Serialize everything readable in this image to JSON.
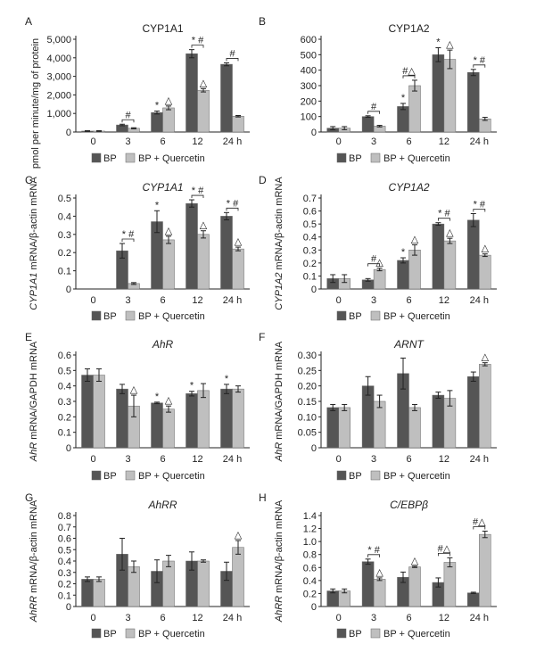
{
  "colors": {
    "bp": "#555555",
    "bpq": "#bfbfbf",
    "axis": "#222222",
    "error": "#222222"
  },
  "legend": {
    "bp": "BP",
    "bpq": "BP + Quercetin"
  },
  "x_categories": [
    "0",
    "3",
    "6",
    "12",
    "24 h"
  ],
  "chart_data": [
    {
      "panel": "A",
      "type": "bar",
      "title": "CYP1A1",
      "title_italic": false,
      "ylabel": "",
      "shared_ylabel": "pmol per minute/mg of protein",
      "ylim": [
        0,
        5000
      ],
      "yticks": [
        0,
        1000,
        2000,
        3000,
        4000,
        5000
      ],
      "ytick_labels": [
        "0",
        "1,000",
        "2,000",
        "3,000",
        "4,000",
        "5,000"
      ],
      "categories": [
        "0",
        "3",
        "6",
        "12",
        "24 h"
      ],
      "series": [
        {
          "name": "BP",
          "values": [
            50,
            380,
            1050,
            4220,
            3650
          ],
          "errors": [
            20,
            40,
            80,
            220,
            80
          ]
        },
        {
          "name": "BP + Quercetin",
          "values": [
            50,
            200,
            1300,
            2250,
            850
          ],
          "errors": [
            20,
            30,
            100,
            90,
            40
          ]
        }
      ],
      "annotations": [
        {
          "cat": 1,
          "series": "pair",
          "text": "#"
        },
        {
          "cat": 2,
          "series": "BP",
          "text": "*"
        },
        {
          "cat": 2,
          "series": "BP + Quercetin",
          "text": "△"
        },
        {
          "cat": 3,
          "series": "pair",
          "text": "* #"
        },
        {
          "cat": 3,
          "series": "BP + Quercetin",
          "text": "△"
        },
        {
          "cat": 4,
          "series": "pair",
          "text": "#"
        }
      ]
    },
    {
      "panel": "B",
      "type": "bar",
      "title": "CYP1A2",
      "title_italic": false,
      "ylabel": "",
      "shared_ylabel": "",
      "ylim": [
        0,
        600
      ],
      "yticks": [
        0,
        100,
        200,
        300,
        400,
        500,
        600
      ],
      "ytick_labels": [
        "0",
        "100",
        "200",
        "300",
        "400",
        "500",
        "600"
      ],
      "categories": [
        "0",
        "3",
        "6",
        "12",
        "24 h"
      ],
      "series": [
        {
          "name": "BP",
          "values": [
            25,
            100,
            165,
            500,
            385
          ],
          "errors": [
            10,
            5,
            20,
            45,
            20
          ]
        },
        {
          "name": "BP + Quercetin",
          "values": [
            25,
            38,
            300,
            470,
            85
          ],
          "errors": [
            10,
            5,
            35,
            60,
            10
          ]
        }
      ],
      "annotations": [
        {
          "cat": 1,
          "series": "pair",
          "text": "#"
        },
        {
          "cat": 2,
          "series": "BP",
          "text": "*"
        },
        {
          "cat": 2,
          "series": "pair",
          "text": "#△"
        },
        {
          "cat": 3,
          "series": "BP",
          "text": "*"
        },
        {
          "cat": 3,
          "series": "BP + Quercetin",
          "text": "△"
        },
        {
          "cat": 4,
          "series": "pair",
          "text": "* #"
        }
      ]
    },
    {
      "panel": "C",
      "type": "bar",
      "title": "CYP1A1",
      "title_italic": true,
      "ylabel": "mRNA/β-actin mRNA",
      "ylabel_italic": "CYP1A1",
      "ylim": [
        0,
        0.5
      ],
      "yticks": [
        0,
        0.1,
        0.2,
        0.3,
        0.4,
        0.5
      ],
      "ytick_labels": [
        "0",
        "0.1",
        "0.2",
        "0.3",
        "0.4",
        "0.5"
      ],
      "categories": [
        "0",
        "3",
        "6",
        "12",
        "24 h"
      ],
      "series": [
        {
          "name": "BP",
          "values": [
            0,
            0.21,
            0.37,
            0.47,
            0.4
          ],
          "errors": [
            0,
            0.04,
            0.06,
            0.02,
            0.02
          ]
        },
        {
          "name": "BP + Quercetin",
          "values": [
            0,
            0.03,
            0.27,
            0.3,
            0.22
          ],
          "errors": [
            0,
            0.005,
            0.02,
            0.02,
            0.01
          ]
        }
      ],
      "annotations": [
        {
          "cat": 1,
          "series": "pair",
          "text": "* #"
        },
        {
          "cat": 2,
          "series": "BP",
          "text": "*"
        },
        {
          "cat": 2,
          "series": "BP + Quercetin",
          "text": "△"
        },
        {
          "cat": 3,
          "series": "pair",
          "text": "* #"
        },
        {
          "cat": 3,
          "series": "BP + Quercetin",
          "text": "△"
        },
        {
          "cat": 4,
          "series": "pair",
          "text": "* #"
        },
        {
          "cat": 4,
          "series": "BP + Quercetin",
          "text": "△"
        }
      ]
    },
    {
      "panel": "D",
      "type": "bar",
      "title": "CYP1A2",
      "title_italic": true,
      "ylabel": "mRNA/β-actin mRNA",
      "ylabel_italic": "CYP1A2",
      "ylim": [
        0,
        0.7
      ],
      "yticks": [
        0,
        0.1,
        0.2,
        0.3,
        0.4,
        0.5,
        0.6,
        0.7
      ],
      "ytick_labels": [
        "0",
        "0.1",
        "0.2",
        "0.3",
        "0.4",
        "0.5",
        "0.6",
        "0.7"
      ],
      "categories": [
        "0",
        "3",
        "6",
        "12",
        "24 h"
      ],
      "series": [
        {
          "name": "BP",
          "values": [
            0.08,
            0.07,
            0.22,
            0.5,
            0.53
          ],
          "errors": [
            0.03,
            0.01,
            0.02,
            0.01,
            0.05
          ]
        },
        {
          "name": "BP + Quercetin",
          "values": [
            0.08,
            0.15,
            0.3,
            0.37,
            0.26
          ],
          "errors": [
            0.03,
            0.01,
            0.04,
            0.02,
            0.01
          ]
        }
      ],
      "annotations": [
        {
          "cat": 1,
          "series": "pair",
          "text": "#"
        },
        {
          "cat": 1,
          "series": "BP + Quercetin",
          "text": "△"
        },
        {
          "cat": 2,
          "series": "BP",
          "text": "*"
        },
        {
          "cat": 2,
          "series": "BP + Quercetin",
          "text": "△"
        },
        {
          "cat": 3,
          "series": "pair",
          "text": "* #"
        },
        {
          "cat": 3,
          "series": "BP + Quercetin",
          "text": "△"
        },
        {
          "cat": 4,
          "series": "pair",
          "text": "* #"
        },
        {
          "cat": 4,
          "series": "BP + Quercetin",
          "text": "△"
        }
      ]
    },
    {
      "panel": "E",
      "type": "bar",
      "title": "AhR",
      "title_italic": true,
      "ylabel": "mRNA/GAPDH mRNA",
      "ylabel_italic": "AhR",
      "ylim": [
        0,
        0.6
      ],
      "yticks": [
        0,
        0.1,
        0.2,
        0.3,
        0.4,
        0.5,
        0.6
      ],
      "ytick_labels": [
        "0",
        "0.1",
        "0.2",
        "0.3",
        "0.4",
        "0.5",
        "0.6"
      ],
      "categories": [
        "0",
        "3",
        "6",
        "12",
        "24 h"
      ],
      "series": [
        {
          "name": "BP",
          "values": [
            0.47,
            0.38,
            0.29,
            0.35,
            0.38
          ],
          "errors": [
            0.04,
            0.03,
            0.005,
            0.015,
            0.03
          ]
        },
        {
          "name": "BP + Quercetin",
          "values": [
            0.47,
            0.27,
            0.25,
            0.37,
            0.38
          ],
          "errors": [
            0.04,
            0.07,
            0.02,
            0.045,
            0.02
          ]
        }
      ],
      "annotations": [
        {
          "cat": 1,
          "series": "BP + Quercetin",
          "text": "△"
        },
        {
          "cat": 2,
          "series": "BP",
          "text": "*"
        },
        {
          "cat": 2,
          "series": "BP + Quercetin",
          "text": "△"
        },
        {
          "cat": 3,
          "series": "BP",
          "text": "*"
        },
        {
          "cat": 4,
          "series": "BP",
          "text": "*"
        }
      ]
    },
    {
      "panel": "F",
      "type": "bar",
      "title": "ARNT",
      "title_italic": true,
      "ylabel": "mRNA/GAPDH mRNA",
      "ylabel_italic": "AhR",
      "ylim": [
        0,
        0.3
      ],
      "yticks": [
        0,
        0.05,
        0.1,
        0.15,
        0.2,
        0.25,
        0.3
      ],
      "ytick_labels": [
        "0",
        "0.05",
        "0.10",
        "0.15",
        "0.20",
        "0.25",
        "0.30"
      ],
      "categories": [
        "0",
        "3",
        "6",
        "12",
        "24 h"
      ],
      "series": [
        {
          "name": "BP",
          "values": [
            0.13,
            0.2,
            0.24,
            0.17,
            0.23
          ],
          "errors": [
            0.01,
            0.03,
            0.05,
            0.01,
            0.015
          ]
        },
        {
          "name": "BP + Quercetin",
          "values": [
            0.13,
            0.15,
            0.13,
            0.16,
            0.27
          ],
          "errors": [
            0.01,
            0.02,
            0.01,
            0.025,
            0.005
          ]
        }
      ],
      "annotations": [
        {
          "cat": 4,
          "series": "BP + Quercetin",
          "text": "△"
        }
      ]
    },
    {
      "panel": "G",
      "type": "bar",
      "title": "AhRR",
      "title_italic": true,
      "ylabel": "mRNA/β-actin mRNA",
      "ylabel_italic": "AhRR",
      "ylim": [
        0,
        0.8
      ],
      "yticks": [
        0,
        0.1,
        0.2,
        0.3,
        0.4,
        0.5,
        0.6,
        0.7,
        0.8
      ],
      "ytick_labels": [
        "0",
        "0.1",
        "0.2",
        "0.3",
        "0.4",
        "0.5",
        "0.6",
        "0.7",
        "0.8"
      ],
      "categories": [
        "0",
        "3",
        "6",
        "12",
        "24 h"
      ],
      "series": [
        {
          "name": "BP",
          "values": [
            0.24,
            0.46,
            0.31,
            0.4,
            0.31
          ],
          "errors": [
            0.02,
            0.14,
            0.1,
            0.08,
            0.08
          ]
        },
        {
          "name": "BP + Quercetin",
          "values": [
            0.24,
            0.35,
            0.4,
            0.4,
            0.52
          ],
          "errors": [
            0.02,
            0.05,
            0.05,
            0.01,
            0.06
          ]
        }
      ],
      "annotations": [
        {
          "cat": 4,
          "series": "BP + Quercetin",
          "text": "△"
        }
      ]
    },
    {
      "panel": "H",
      "type": "bar",
      "title": "C/EBPβ",
      "title_italic": true,
      "ylabel": "mRNA/β-actin mRNA",
      "ylabel_italic": "AhRR",
      "ylim": [
        0,
        1.4
      ],
      "yticks": [
        0,
        0.2,
        0.4,
        0.6,
        0.8,
        1.0,
        1.2,
        1.4
      ],
      "ytick_labels": [
        "0",
        "0.2",
        "0.4",
        "0.6",
        "0.8",
        "1.0",
        "1.2",
        "1.4"
      ],
      "categories": [
        "0",
        "3",
        "6",
        "12",
        "24 h"
      ],
      "series": [
        {
          "name": "BP",
          "values": [
            0.24,
            0.69,
            0.45,
            0.37,
            0.21
          ],
          "errors": [
            0.03,
            0.04,
            0.08,
            0.07,
            0.01
          ]
        },
        {
          "name": "BP + Quercetin",
          "values": [
            0.24,
            0.42,
            0.61,
            0.68,
            1.11
          ],
          "errors": [
            0.03,
            0.02,
            0.01,
            0.07,
            0.05
          ]
        }
      ],
      "annotations": [
        {
          "cat": 1,
          "series": "pair",
          "text": "* #"
        },
        {
          "cat": 1,
          "series": "BP + Quercetin",
          "text": "△"
        },
        {
          "cat": 2,
          "series": "BP + Quercetin",
          "text": "△"
        },
        {
          "cat": 3,
          "series": "pair",
          "text": "#△"
        },
        {
          "cat": 4,
          "series": "pair",
          "text": "#△"
        }
      ]
    }
  ]
}
